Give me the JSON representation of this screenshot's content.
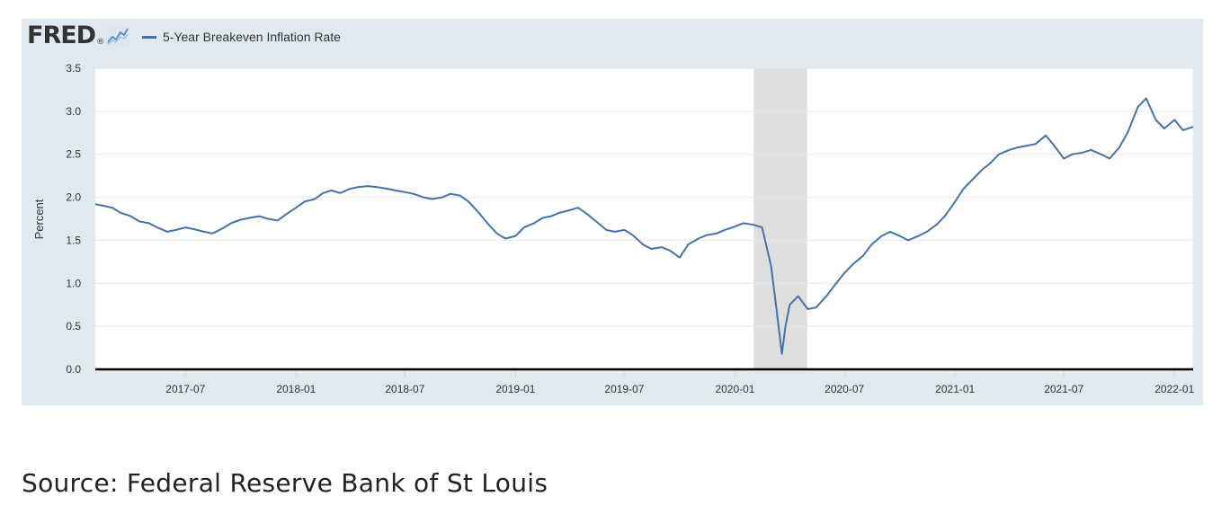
{
  "brand": {
    "logo": "FRED",
    "logo_mark": "®"
  },
  "footer": {
    "source": "Source: Federal Reserve Bank of St Louis"
  },
  "colors": {
    "panel_bg": "#e1e9f0",
    "line": "#4572a7",
    "recession": "#dedede"
  },
  "chart_data": {
    "type": "line",
    "title": "",
    "xlabel": "",
    "ylabel": "Percent",
    "legend": [
      "5-Year Breakeven Inflation Rate"
    ],
    "legend_position": "top-left",
    "grid": true,
    "xlim": [
      "2017-02-01",
      "2022-02-01"
    ],
    "ylim": [
      0,
      3.5
    ],
    "yticks": [
      0.0,
      0.5,
      1.0,
      1.5,
      2.0,
      2.5,
      3.0,
      3.5
    ],
    "ytick_labels": [
      "0.0",
      "0.5",
      "1.0",
      "1.5",
      "2.0",
      "2.5",
      "3.0",
      "3.5"
    ],
    "xticks": [
      "2017-07-01",
      "2018-01-01",
      "2018-07-01",
      "2019-01-01",
      "2019-07-01",
      "2020-01-01",
      "2020-07-01",
      "2021-01-01",
      "2021-07-01",
      "2022-01-01"
    ],
    "xtick_labels": [
      "2017-07",
      "2018-01",
      "2018-07",
      "2019-01",
      "2019-07",
      "2020-01",
      "2020-07",
      "2021-01",
      "2021-07",
      "2022-01"
    ],
    "recession_shading": [
      {
        "start": "2020-02-01",
        "end": "2020-04-30"
      }
    ],
    "series": [
      {
        "name": "5-Year Breakeven Inflation Rate",
        "color": "#4572a7",
        "x": [
          "2017-02-01",
          "2017-02-15",
          "2017-03-01",
          "2017-03-15",
          "2017-04-01",
          "2017-04-15",
          "2017-05-01",
          "2017-05-15",
          "2017-06-01",
          "2017-06-15",
          "2017-07-01",
          "2017-07-15",
          "2017-08-01",
          "2017-08-15",
          "2017-09-01",
          "2017-09-15",
          "2017-10-01",
          "2017-10-15",
          "2017-11-01",
          "2017-11-15",
          "2017-12-01",
          "2017-12-15",
          "2018-01-01",
          "2018-01-15",
          "2018-02-01",
          "2018-02-15",
          "2018-03-01",
          "2018-03-15",
          "2018-04-01",
          "2018-04-15",
          "2018-05-01",
          "2018-05-15",
          "2018-06-01",
          "2018-06-15",
          "2018-07-01",
          "2018-07-15",
          "2018-08-01",
          "2018-08-15",
          "2018-09-01",
          "2018-09-15",
          "2018-10-01",
          "2018-10-15",
          "2018-11-01",
          "2018-11-15",
          "2018-12-01",
          "2018-12-15",
          "2019-01-01",
          "2019-01-15",
          "2019-02-01",
          "2019-02-15",
          "2019-03-01",
          "2019-03-15",
          "2019-04-01",
          "2019-04-15",
          "2019-05-01",
          "2019-05-15",
          "2019-06-01",
          "2019-06-15",
          "2019-07-01",
          "2019-07-15",
          "2019-08-01",
          "2019-08-15",
          "2019-09-01",
          "2019-09-15",
          "2019-10-01",
          "2019-10-15",
          "2019-11-01",
          "2019-11-15",
          "2019-12-01",
          "2019-12-15",
          "2020-01-01",
          "2020-01-15",
          "2020-02-01",
          "2020-02-15",
          "2020-03-01",
          "2020-03-10",
          "2020-03-19",
          "2020-03-25",
          "2020-04-01",
          "2020-04-15",
          "2020-05-01",
          "2020-05-15",
          "2020-06-01",
          "2020-06-15",
          "2020-07-01",
          "2020-07-15",
          "2020-08-01",
          "2020-08-15",
          "2020-09-01",
          "2020-09-15",
          "2020-10-01",
          "2020-10-15",
          "2020-11-01",
          "2020-11-15",
          "2020-12-01",
          "2020-12-15",
          "2021-01-01",
          "2021-01-15",
          "2021-02-01",
          "2021-02-15",
          "2021-03-01",
          "2021-03-15",
          "2021-04-01",
          "2021-04-15",
          "2021-05-01",
          "2021-05-15",
          "2021-06-01",
          "2021-06-15",
          "2021-07-01",
          "2021-07-15",
          "2021-08-01",
          "2021-08-15",
          "2021-09-01",
          "2021-09-15",
          "2021-10-01",
          "2021-10-15",
          "2021-11-01",
          "2021-11-15",
          "2021-12-01",
          "2021-12-15",
          "2022-01-01",
          "2022-01-15",
          "2022-02-01"
        ],
        "y": [
          1.92,
          1.9,
          1.88,
          1.82,
          1.78,
          1.72,
          1.7,
          1.65,
          1.6,
          1.62,
          1.65,
          1.63,
          1.6,
          1.58,
          1.64,
          1.7,
          1.74,
          1.76,
          1.78,
          1.75,
          1.73,
          1.8,
          1.88,
          1.95,
          1.98,
          2.05,
          2.08,
          2.05,
          2.1,
          2.12,
          2.13,
          2.12,
          2.1,
          2.08,
          2.06,
          2.04,
          2.0,
          1.98,
          2.0,
          2.04,
          2.02,
          1.95,
          1.82,
          1.7,
          1.58,
          1.52,
          1.55,
          1.65,
          1.7,
          1.76,
          1.78,
          1.82,
          1.85,
          1.88,
          1.8,
          1.72,
          1.62,
          1.6,
          1.62,
          1.56,
          1.45,
          1.4,
          1.42,
          1.38,
          1.3,
          1.45,
          1.52,
          1.56,
          1.58,
          1.62,
          1.66,
          1.7,
          1.68,
          1.65,
          1.2,
          0.7,
          0.18,
          0.5,
          0.75,
          0.85,
          0.7,
          0.72,
          0.85,
          0.98,
          1.12,
          1.22,
          1.32,
          1.45,
          1.55,
          1.6,
          1.55,
          1.5,
          1.55,
          1.6,
          1.68,
          1.78,
          1.95,
          2.1,
          2.22,
          2.32,
          2.4,
          2.5,
          2.55,
          2.58,
          2.6,
          2.62,
          2.72,
          2.6,
          2.45,
          2.5,
          2.52,
          2.55,
          2.5,
          2.45,
          2.58,
          2.75,
          3.05,
          3.15,
          2.9,
          2.8,
          2.9,
          2.78,
          2.82
        ]
      }
    ]
  }
}
